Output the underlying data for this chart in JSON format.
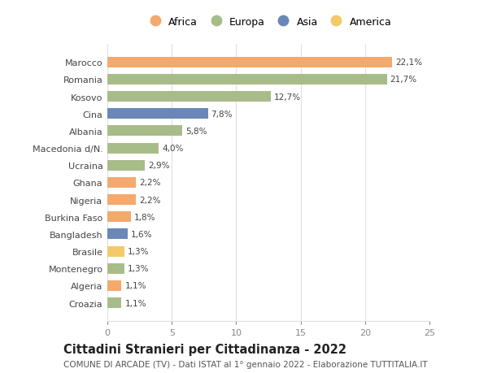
{
  "categories": [
    "Marocco",
    "Romania",
    "Kosovo",
    "Cina",
    "Albania",
    "Macedonia d/N.",
    "Ucraina",
    "Ghana",
    "Nigeria",
    "Burkina Faso",
    "Bangladesh",
    "Brasile",
    "Montenegro",
    "Algeria",
    "Croazia"
  ],
  "values": [
    22.1,
    21.7,
    12.7,
    7.8,
    5.8,
    4.0,
    2.9,
    2.2,
    2.2,
    1.8,
    1.6,
    1.3,
    1.3,
    1.1,
    1.1
  ],
  "labels": [
    "22,1%",
    "21,7%",
    "12,7%",
    "7,8%",
    "5,8%",
    "4,0%",
    "2,9%",
    "2,2%",
    "2,2%",
    "1,8%",
    "1,6%",
    "1,3%",
    "1,3%",
    "1,1%",
    "1,1%"
  ],
  "colors": [
    "#F4A96D",
    "#A8BC8A",
    "#A8BC8A",
    "#6A87B8",
    "#A8BC8A",
    "#A8BC8A",
    "#A8BC8A",
    "#F4A96D",
    "#F4A96D",
    "#F4A96D",
    "#6A87B8",
    "#F4C96A",
    "#A8BC8A",
    "#F4A96D",
    "#A8BC8A"
  ],
  "legend": [
    {
      "label": "Africa",
      "color": "#F4A96D"
    },
    {
      "label": "Europa",
      "color": "#A8BC8A"
    },
    {
      "label": "Asia",
      "color": "#6A87B8"
    },
    {
      "label": "America",
      "color": "#F4C96A"
    }
  ],
  "xlim": [
    0,
    25
  ],
  "xticks": [
    0,
    5,
    10,
    15,
    20,
    25
  ],
  "title": "Cittadini Stranieri per Cittadinanza - 2022",
  "subtitle": "COMUNE DI ARCADE (TV) - Dati ISTAT al 1° gennaio 2022 - Elaborazione TUTTITALIA.IT",
  "background_color": "#ffffff",
  "grid_color": "#e0e0e0",
  "bar_height": 0.62,
  "title_fontsize": 10.5,
  "subtitle_fontsize": 7.5,
  "label_fontsize": 7.5,
  "tick_fontsize": 8,
  "legend_fontsize": 9
}
